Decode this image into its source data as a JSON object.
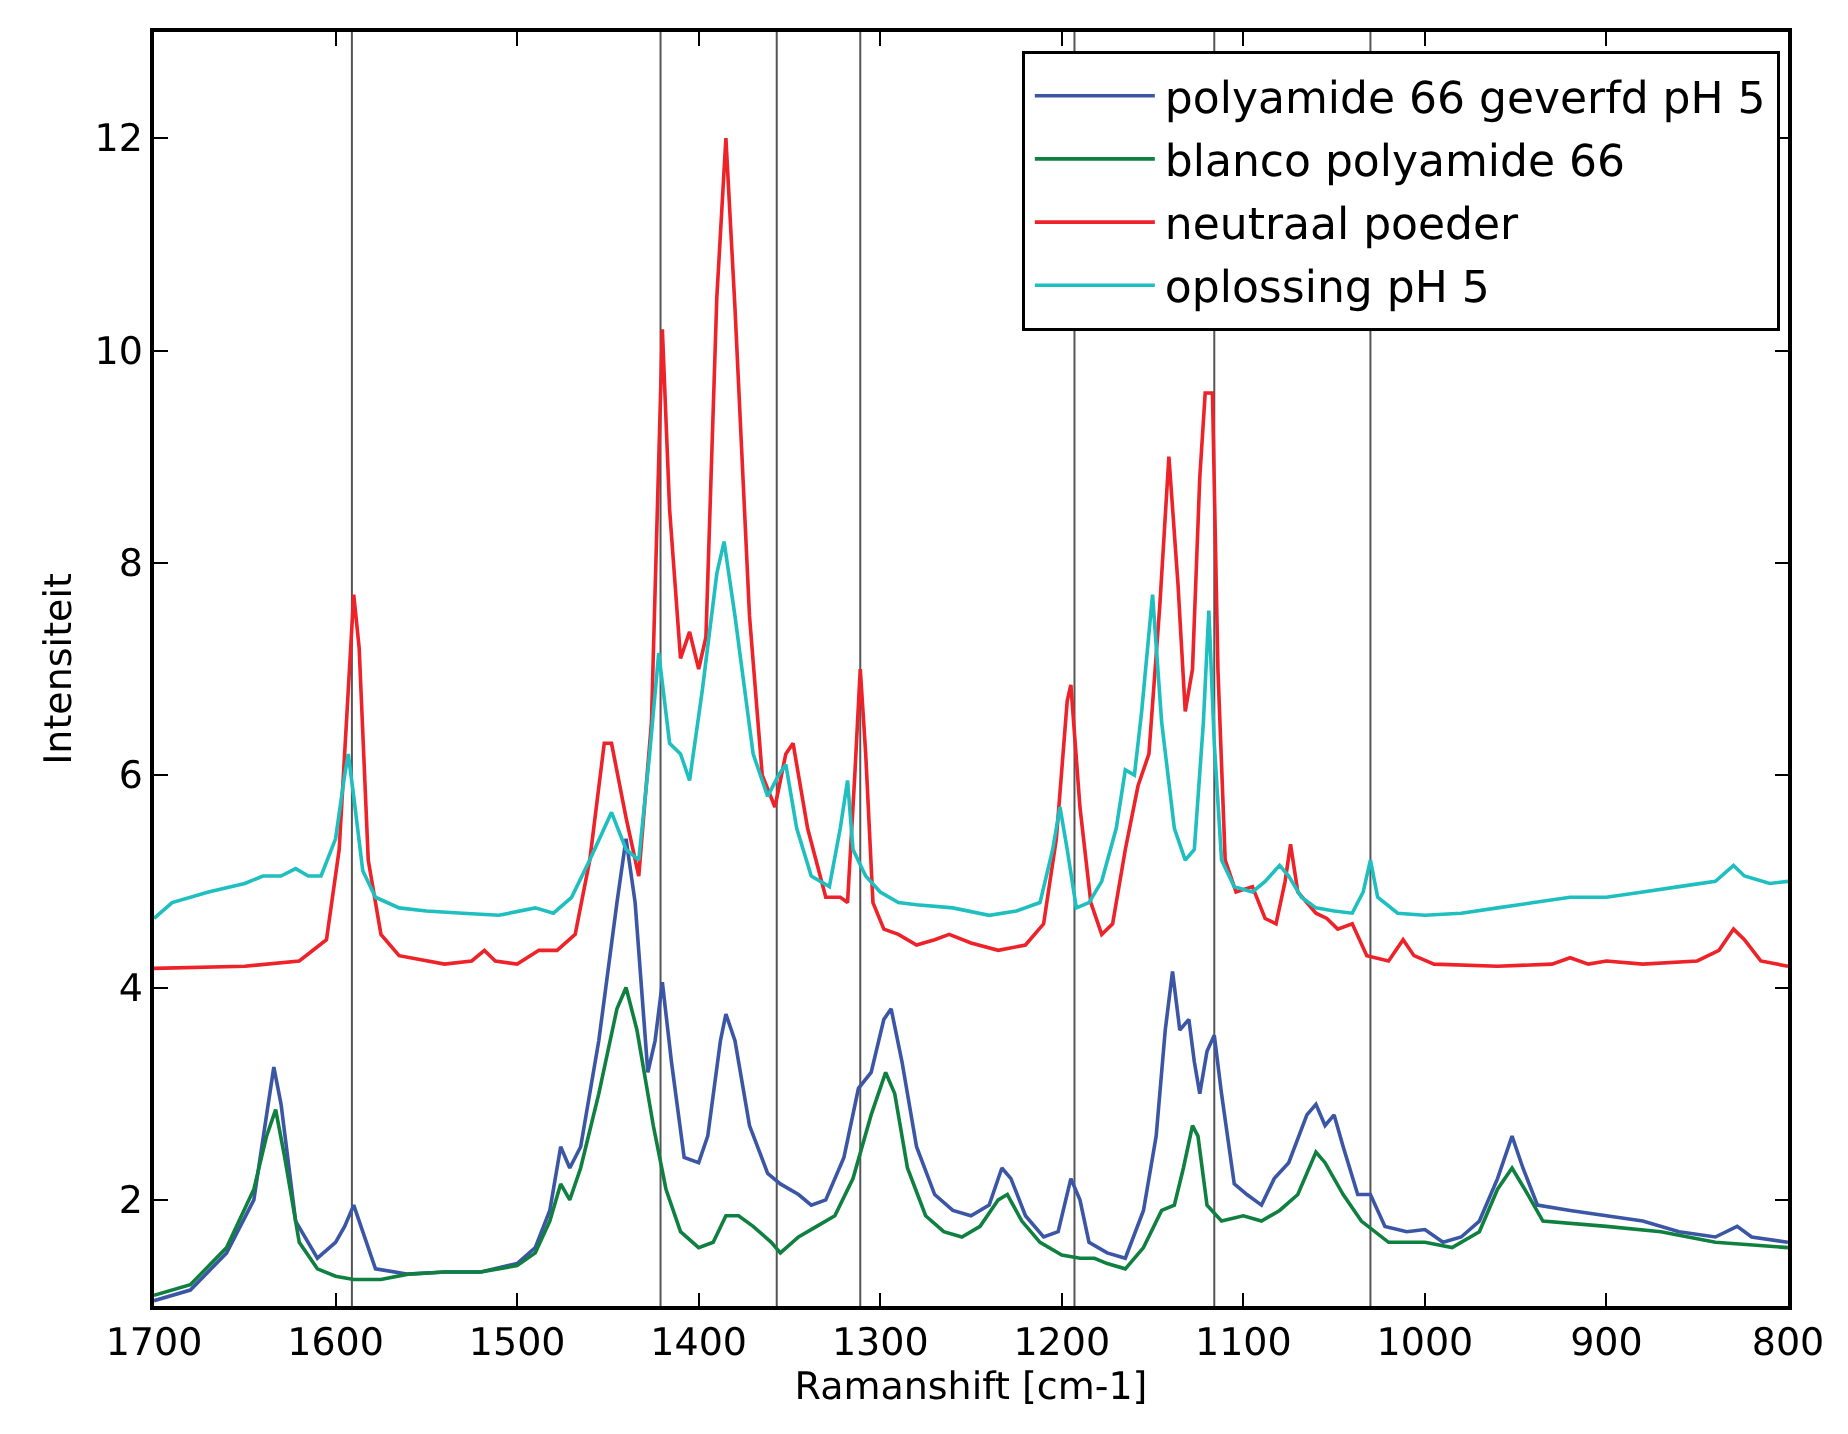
{
  "chart_data": {
    "type": "line",
    "xlabel": "Ramanshift [cm-1]",
    "ylabel": "Intensiteit",
    "xlim": [
      1700,
      800
    ],
    "xticks": [
      1700,
      1600,
      1500,
      1400,
      1300,
      1200,
      1100,
      1000,
      900,
      800
    ],
    "ylim": [
      1,
      13
    ],
    "yticks": [
      2,
      4,
      6,
      8,
      10,
      12
    ],
    "grid": false,
    "legend": "top right",
    "line_style": "solid",
    "marker": "none",
    "ref_lines": [
      {
        "axis": "x",
        "value": 1591,
        "color": "#555555"
      },
      {
        "axis": "x",
        "value": 1421,
        "color": "#555555"
      },
      {
        "axis": "x",
        "value": 1357,
        "color": "#555555"
      },
      {
        "axis": "x",
        "value": 1311,
        "color": "#555555"
      },
      {
        "axis": "x",
        "value": 1193,
        "color": "#555555"
      },
      {
        "axis": "x",
        "value": 1116,
        "color": "#555555"
      },
      {
        "axis": "x",
        "value": 1030,
        "color": "#555555"
      }
    ],
    "series": [
      {
        "name": "polyamide 66 geverfd pH 5",
        "color": "#3a56a5",
        "x": [
          1700,
          1680,
          1660,
          1645,
          1638,
          1634,
          1630,
          1622,
          1610,
          1600,
          1595,
          1590,
          1586,
          1578,
          1560,
          1540,
          1520,
          1500,
          1490,
          1482,
          1476,
          1471,
          1465,
          1455,
          1445,
          1440,
          1435,
          1428,
          1424,
          1420,
          1415,
          1408,
          1400,
          1395,
          1388,
          1385,
          1380,
          1372,
          1362,
          1355,
          1345,
          1338,
          1330,
          1320,
          1312,
          1305,
          1298,
          1294,
          1288,
          1280,
          1270,
          1260,
          1250,
          1240,
          1233,
          1228,
          1220,
          1210,
          1202,
          1195,
          1190,
          1185,
          1175,
          1165,
          1155,
          1148,
          1143,
          1139,
          1135,
          1130,
          1127,
          1124,
          1120,
          1116,
          1112,
          1105,
          1098,
          1090,
          1083,
          1075,
          1065,
          1060,
          1055,
          1050,
          1045,
          1037,
          1030,
          1022,
          1010,
          1000,
          990,
          980,
          970,
          960,
          952,
          946,
          938,
          920,
          900,
          880,
          860,
          840,
          828,
          820,
          800
        ],
        "values": [
          1.05,
          1.15,
          1.5,
          2.0,
          2.8,
          3.25,
          2.9,
          1.8,
          1.45,
          1.6,
          1.75,
          1.95,
          1.75,
          1.35,
          1.3,
          1.32,
          1.32,
          1.4,
          1.55,
          1.9,
          2.5,
          2.3,
          2.5,
          3.5,
          4.8,
          5.4,
          4.8,
          3.2,
          3.5,
          4.05,
          3.3,
          2.4,
          2.35,
          2.6,
          3.5,
          3.75,
          3.5,
          2.7,
          2.25,
          2.15,
          2.05,
          1.95,
          2.0,
          2.4,
          3.05,
          3.2,
          3.7,
          3.8,
          3.3,
          2.5,
          2.05,
          1.9,
          1.85,
          1.95,
          2.3,
          2.2,
          1.85,
          1.65,
          1.7,
          2.2,
          2.0,
          1.6,
          1.5,
          1.45,
          1.9,
          2.6,
          3.6,
          4.15,
          3.6,
          3.7,
          3.3,
          3.0,
          3.4,
          3.55,
          3.0,
          2.15,
          2.05,
          1.95,
          2.2,
          2.35,
          2.8,
          2.9,
          2.7,
          2.8,
          2.5,
          2.05,
          2.05,
          1.75,
          1.7,
          1.72,
          1.6,
          1.65,
          1.8,
          2.2,
          2.6,
          2.3,
          1.95,
          1.9,
          1.85,
          1.8,
          1.7,
          1.65,
          1.75,
          1.65,
          1.6
        ]
      },
      {
        "name": "blanco polyamide 66",
        "color": "#0f8040",
        "x": [
          1700,
          1680,
          1660,
          1645,
          1638,
          1633,
          1628,
          1620,
          1610,
          1600,
          1590,
          1575,
          1560,
          1540,
          1520,
          1500,
          1490,
          1482,
          1476,
          1471,
          1465,
          1455,
          1445,
          1440,
          1434,
          1425,
          1418,
          1410,
          1400,
          1392,
          1385,
          1378,
          1370,
          1360,
          1355,
          1345,
          1335,
          1325,
          1315,
          1305,
          1297,
          1292,
          1285,
          1275,
          1265,
          1255,
          1245,
          1235,
          1230,
          1222,
          1212,
          1200,
          1190,
          1182,
          1175,
          1165,
          1155,
          1145,
          1138,
          1133,
          1128,
          1125,
          1120,
          1112,
          1100,
          1090,
          1080,
          1070,
          1060,
          1055,
          1045,
          1035,
          1020,
          1000,
          985,
          970,
          960,
          952,
          945,
          935,
          900,
          870,
          840,
          800
        ],
        "values": [
          1.1,
          1.2,
          1.55,
          2.1,
          2.6,
          2.85,
          2.4,
          1.6,
          1.35,
          1.28,
          1.25,
          1.25,
          1.3,
          1.32,
          1.32,
          1.38,
          1.5,
          1.8,
          2.15,
          2.0,
          2.3,
          3.0,
          3.8,
          4.0,
          3.6,
          2.7,
          2.1,
          1.7,
          1.55,
          1.6,
          1.85,
          1.85,
          1.75,
          1.6,
          1.5,
          1.65,
          1.75,
          1.85,
          2.2,
          2.8,
          3.2,
          3.0,
          2.3,
          1.85,
          1.7,
          1.65,
          1.75,
          2.0,
          2.05,
          1.8,
          1.6,
          1.48,
          1.45,
          1.45,
          1.4,
          1.35,
          1.55,
          1.9,
          1.95,
          2.3,
          2.7,
          2.6,
          1.95,
          1.8,
          1.85,
          1.8,
          1.9,
          2.05,
          2.45,
          2.35,
          2.05,
          1.8,
          1.6,
          1.6,
          1.55,
          1.7,
          2.1,
          2.3,
          2.1,
          1.8,
          1.75,
          1.7,
          1.6,
          1.55
        ]
      },
      {
        "name": "neutraal poeder",
        "color": "#ee2229",
        "x": [
          1700,
          1650,
          1620,
          1605,
          1598,
          1593,
          1590,
          1587,
          1582,
          1575,
          1565,
          1540,
          1525,
          1518,
          1512,
          1500,
          1488,
          1478,
          1468,
          1460,
          1452,
          1448,
          1440,
          1433,
          1426,
          1420,
          1416,
          1410,
          1405,
          1400,
          1396,
          1390,
          1385,
          1380,
          1372,
          1365,
          1358,
          1352,
          1348,
          1340,
          1330,
          1322,
          1318,
          1314,
          1311,
          1308,
          1304,
          1298,
          1290,
          1280,
          1270,
          1262,
          1250,
          1235,
          1220,
          1210,
          1203,
          1197,
          1195,
          1190,
          1184,
          1178,
          1172,
          1165,
          1158,
          1152,
          1146,
          1141,
          1136,
          1132,
          1128,
          1124,
          1121,
          1117,
          1114,
          1110,
          1104,
          1095,
          1088,
          1082,
          1077,
          1074,
          1070,
          1060,
          1054,
          1048,
          1040,
          1032,
          1020,
          1012,
          1006,
          995,
          960,
          930,
          920,
          910,
          900,
          880,
          850,
          838,
          830,
          824,
          815,
          800
        ],
        "values": [
          4.18,
          4.2,
          4.25,
          4.45,
          5.3,
          6.8,
          7.7,
          7.2,
          5.2,
          4.5,
          4.3,
          4.22,
          4.25,
          4.35,
          4.25,
          4.22,
          4.35,
          4.35,
          4.5,
          5.2,
          6.3,
          6.3,
          5.6,
          5.05,
          6.5,
          10.2,
          8.5,
          7.1,
          7.35,
          7.0,
          7.3,
          10.5,
          12.0,
          10.4,
          7.5,
          6.0,
          5.7,
          6.2,
          6.3,
          5.5,
          4.85,
          4.85,
          4.8,
          6.0,
          7.0,
          6.2,
          4.8,
          4.55,
          4.5,
          4.4,
          4.45,
          4.5,
          4.42,
          4.35,
          4.4,
          4.6,
          5.4,
          6.7,
          6.85,
          5.7,
          4.8,
          4.5,
          4.6,
          5.3,
          5.9,
          6.2,
          7.6,
          9.0,
          7.8,
          6.6,
          7.0,
          8.8,
          9.6,
          9.6,
          7.0,
          5.2,
          4.9,
          4.95,
          4.65,
          4.6,
          5.0,
          5.35,
          4.9,
          4.7,
          4.65,
          4.55,
          4.6,
          4.3,
          4.25,
          4.45,
          4.3,
          4.22,
          4.2,
          4.22,
          4.28,
          4.22,
          4.25,
          4.22,
          4.25,
          4.35,
          4.55,
          4.45,
          4.25,
          4.2
        ]
      },
      {
        "name": "oplossing pH 5",
        "color": "#1fbfbf",
        "x": [
          1700,
          1690,
          1670,
          1650,
          1640,
          1630,
          1622,
          1615,
          1608,
          1600,
          1595,
          1593,
          1590,
          1585,
          1578,
          1565,
          1550,
          1530,
          1510,
          1490,
          1480,
          1470,
          1460,
          1452,
          1448,
          1440,
          1433,
          1427,
          1422,
          1416,
          1410,
          1405,
          1398,
          1390,
          1386,
          1380,
          1370,
          1362,
          1356,
          1352,
          1346,
          1338,
          1328,
          1322,
          1318,
          1315,
          1308,
          1300,
          1290,
          1280,
          1260,
          1240,
          1225,
          1212,
          1205,
          1201,
          1197,
          1192,
          1185,
          1178,
          1170,
          1165,
          1160,
          1156,
          1150,
          1145,
          1138,
          1132,
          1127,
          1122,
          1119,
          1116,
          1112,
          1105,
          1095,
          1088,
          1080,
          1075,
          1068,
          1060,
          1050,
          1040,
          1034,
          1030,
          1026,
          1015,
          1000,
          980,
          960,
          940,
          920,
          900,
          880,
          860,
          840,
          830,
          824,
          810,
          800
        ],
        "values": [
          4.65,
          4.8,
          4.9,
          4.98,
          5.05,
          5.05,
          5.12,
          5.05,
          5.05,
          5.4,
          6.0,
          6.2,
          5.8,
          5.1,
          4.85,
          4.75,
          4.72,
          4.7,
          4.68,
          4.75,
          4.7,
          4.85,
          5.2,
          5.5,
          5.65,
          5.3,
          5.2,
          6.2,
          7.15,
          6.3,
          6.2,
          5.95,
          6.8,
          7.9,
          8.2,
          7.5,
          6.2,
          5.8,
          6.0,
          6.1,
          5.5,
          5.05,
          4.95,
          5.5,
          5.95,
          5.3,
          5.05,
          4.9,
          4.8,
          4.78,
          4.75,
          4.68,
          4.72,
          4.8,
          5.3,
          5.7,
          5.3,
          4.75,
          4.8,
          5.0,
          5.5,
          6.05,
          6.0,
          6.6,
          7.7,
          6.5,
          5.5,
          5.2,
          5.3,
          6.5,
          7.55,
          6.3,
          5.2,
          4.95,
          4.9,
          5.0,
          5.15,
          5.05,
          4.85,
          4.75,
          4.72,
          4.7,
          4.9,
          5.2,
          4.85,
          4.7,
          4.68,
          4.7,
          4.75,
          4.8,
          4.85,
          4.85,
          4.9,
          4.95,
          5.0,
          5.15,
          5.05,
          4.98,
          5.0
        ]
      }
    ]
  }
}
